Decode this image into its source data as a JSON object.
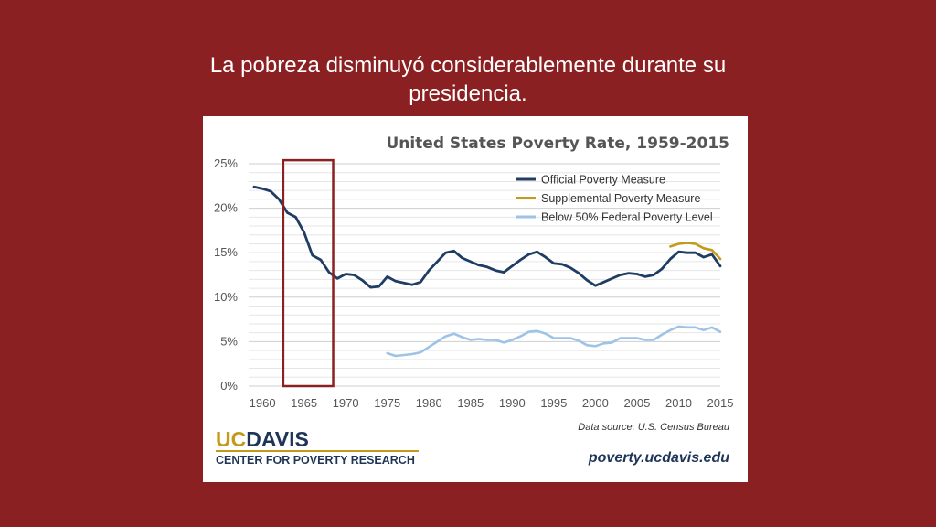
{
  "slide": {
    "title_line1": "La pobreza disminuyó considerablemente durante su",
    "title_line2": "presidencia."
  },
  "colors": {
    "background": "#8b2022",
    "official": "#1f3d63",
    "supplemental": "#c49a1c",
    "below50": "#9ec3e6",
    "highlight": "#8b2022"
  },
  "footer": {
    "logo_uc": "UC",
    "logo_davis": "DAVIS",
    "logo_sub": "CENTER FOR POVERTY RESEARCH",
    "source": "Data source: U.S. Census Bureau",
    "site": "poverty.ucdavis.edu"
  },
  "chart_data": {
    "type": "line",
    "title": "United States Poverty Rate, 1959-2015",
    "xlim": [
      1959,
      2015
    ],
    "ylim": [
      0,
      25
    ],
    "x_ticks": [
      1960,
      1965,
      1970,
      1975,
      1980,
      1985,
      1990,
      1995,
      2000,
      2005,
      2010,
      2015
    ],
    "y_ticks": [
      0,
      5,
      10,
      15,
      20,
      25
    ],
    "y_tick_labels": [
      "0%",
      "5%",
      "10%",
      "15%",
      "20%",
      "25%"
    ],
    "grid": true,
    "legend_position": "top-right",
    "highlight_range": [
      1962.5,
      1968.5
    ],
    "series": [
      {
        "name": "Official Poverty Measure",
        "color": "#1f3d63",
        "x": [
          1959,
          1960,
          1961,
          1962,
          1963,
          1964,
          1965,
          1966,
          1967,
          1968,
          1969,
          1970,
          1971,
          1972,
          1973,
          1974,
          1975,
          1976,
          1977,
          1978,
          1979,
          1980,
          1981,
          1982,
          1983,
          1984,
          1985,
          1986,
          1987,
          1988,
          1989,
          1990,
          1991,
          1992,
          1993,
          1994,
          1995,
          1996,
          1997,
          1998,
          1999,
          2000,
          2001,
          2002,
          2003,
          2004,
          2005,
          2006,
          2007,
          2008,
          2009,
          2010,
          2011,
          2012,
          2013,
          2014,
          2015
        ],
        "y": [
          22.4,
          22.2,
          21.9,
          21.0,
          19.5,
          19.0,
          17.3,
          14.7,
          14.2,
          12.8,
          12.1,
          12.6,
          12.5,
          11.9,
          11.1,
          11.2,
          12.3,
          11.8,
          11.6,
          11.4,
          11.7,
          13.0,
          14.0,
          15.0,
          15.2,
          14.4,
          14.0,
          13.6,
          13.4,
          13.0,
          12.8,
          13.5,
          14.2,
          14.8,
          15.1,
          14.5,
          13.8,
          13.7,
          13.3,
          12.7,
          11.9,
          11.3,
          11.7,
          12.1,
          12.5,
          12.7,
          12.6,
          12.3,
          12.5,
          13.2,
          14.3,
          15.1,
          15.0,
          15.0,
          14.5,
          14.8,
          13.5
        ]
      },
      {
        "name": "Supplemental Poverty Measure",
        "color": "#c49a1c",
        "x": [
          2009,
          2010,
          2011,
          2012,
          2013,
          2014,
          2015
        ],
        "y": [
          15.7,
          16.0,
          16.1,
          16.0,
          15.5,
          15.3,
          14.3
        ]
      },
      {
        "name": "Below 50% Federal Poverty Level",
        "color": "#9ec3e6",
        "x": [
          1975,
          1976,
          1977,
          1978,
          1979,
          1980,
          1981,
          1982,
          1983,
          1984,
          1985,
          1986,
          1987,
          1988,
          1989,
          1990,
          1991,
          1992,
          1993,
          1994,
          1995,
          1996,
          1997,
          1998,
          1999,
          2000,
          2001,
          2002,
          2003,
          2004,
          2005,
          2006,
          2007,
          2008,
          2009,
          2010,
          2011,
          2012,
          2013,
          2014,
          2015
        ],
        "y": [
          3.7,
          3.4,
          3.5,
          3.6,
          3.8,
          4.4,
          5.0,
          5.6,
          5.9,
          5.5,
          5.2,
          5.3,
          5.2,
          5.2,
          4.9,
          5.2,
          5.6,
          6.1,
          6.2,
          5.9,
          5.4,
          5.4,
          5.4,
          5.1,
          4.6,
          4.5,
          4.8,
          4.9,
          5.4,
          5.4,
          5.4,
          5.2,
          5.2,
          5.8,
          6.3,
          6.7,
          6.6,
          6.6,
          6.3,
          6.6,
          6.1
        ]
      }
    ]
  }
}
